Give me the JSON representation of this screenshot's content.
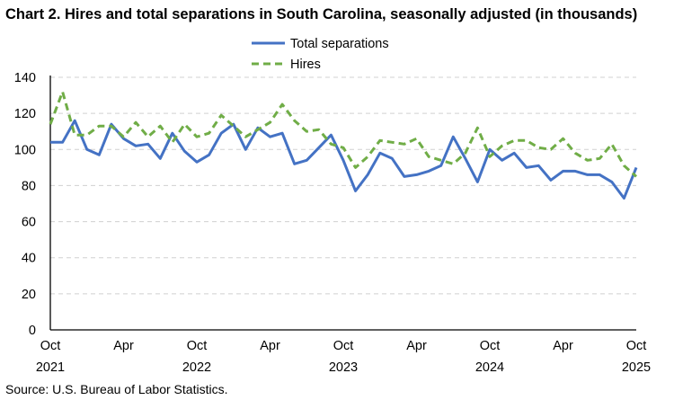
{
  "chart_data": {
    "type": "line",
    "title": "Chart 2. Hires and total separations in South Carolina, seasonally adjusted (in thousands)",
    "source": "Source: U.S. Bureau of Labor Statistics.",
    "x": [
      "2021-10",
      "2021-11",
      "2021-12",
      "2022-01",
      "2022-02",
      "2022-03",
      "2022-04",
      "2022-05",
      "2022-06",
      "2022-07",
      "2022-08",
      "2022-09",
      "2022-10",
      "2022-11",
      "2022-12",
      "2023-01",
      "2023-02",
      "2023-03",
      "2023-04",
      "2023-05",
      "2023-06",
      "2023-07",
      "2023-08",
      "2023-09",
      "2023-10",
      "2023-11",
      "2023-12",
      "2024-01",
      "2024-02",
      "2024-03",
      "2024-04",
      "2024-05",
      "2024-06",
      "2024-07",
      "2024-08",
      "2024-09",
      "2024-10",
      "2024-11",
      "2024-12",
      "2025-01",
      "2025-02",
      "2025-03",
      "2025-04",
      "2025-05",
      "2025-06",
      "2025-07",
      "2025-08",
      "2025-09",
      "2025-10"
    ],
    "x_ticks": [
      {
        "month": "Oct",
        "year": "2021",
        "index": 0
      },
      {
        "month": "Apr",
        "year": "",
        "index": 6
      },
      {
        "month": "Oct",
        "year": "2022",
        "index": 12
      },
      {
        "month": "Apr",
        "year": "",
        "index": 18
      },
      {
        "month": "Oct",
        "year": "2023",
        "index": 24
      },
      {
        "month": "Apr",
        "year": "",
        "index": 30
      },
      {
        "month": "Oct",
        "year": "2024",
        "index": 36
      },
      {
        "month": "Apr",
        "year": "",
        "index": 42
      },
      {
        "month": "Oct",
        "year": "2025",
        "index": 48
      }
    ],
    "y_ticks": [
      0,
      20,
      40,
      60,
      80,
      100,
      120,
      140
    ],
    "ylim": [
      0,
      140
    ],
    "grid": "horizontal dashed",
    "legend_position": "top-center",
    "series": [
      {
        "name": "Total separations",
        "color": "#4472C4",
        "style": "solid",
        "values": [
          104,
          104,
          116,
          100,
          97,
          114,
          106,
          102,
          103,
          95,
          109,
          99,
          93,
          97,
          109,
          114,
          100,
          112,
          107,
          109,
          92,
          94,
          101,
          108,
          94,
          77,
          86,
          98,
          95,
          85,
          86,
          88,
          91,
          107,
          95,
          82,
          100,
          94,
          98,
          90,
          91,
          83,
          88,
          88,
          86,
          86,
          82,
          73,
          90
        ]
      },
      {
        "name": "Hires",
        "color": "#70AD47",
        "style": "dashed",
        "values": [
          114,
          132,
          108,
          108,
          113,
          113,
          107,
          115,
          107,
          113,
          104,
          114,
          107,
          109,
          119,
          113,
          107,
          111,
          115,
          125,
          116,
          110,
          111,
          103,
          101,
          90,
          96,
          105,
          104,
          103,
          106,
          96,
          94,
          92,
          98,
          112,
          96,
          102,
          105,
          105,
          101,
          100,
          106,
          98,
          94,
          95,
          103,
          91,
          85
        ]
      }
    ]
  }
}
